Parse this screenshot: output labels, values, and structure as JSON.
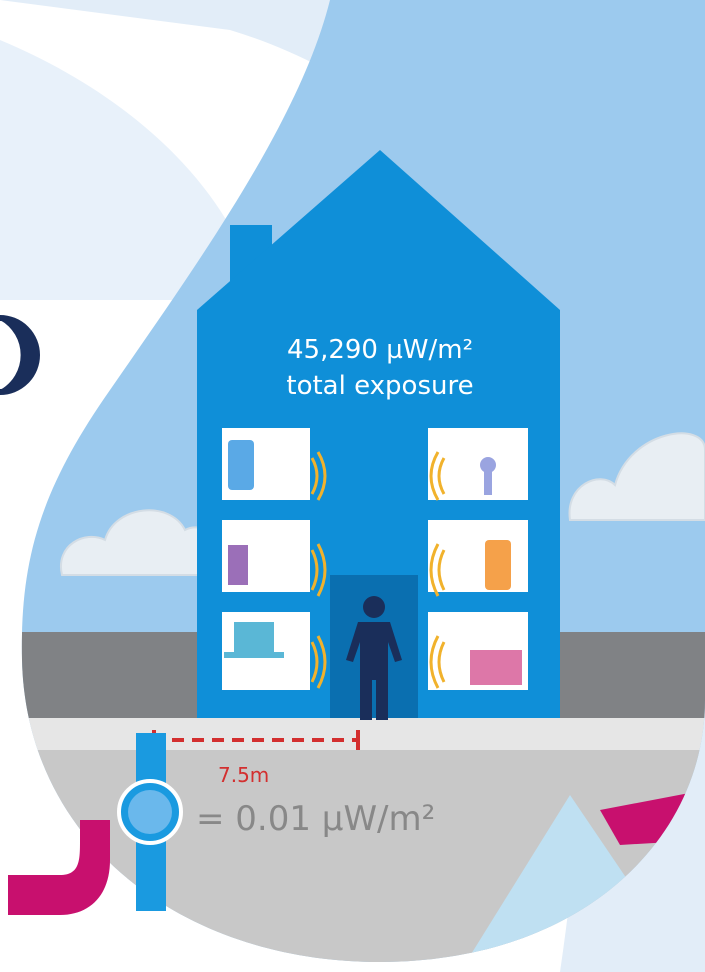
{
  "house_label": {
    "value": "45,290 µW/m²",
    "caption": "total exposure"
  },
  "distance": "7.5m",
  "meter_label": "= 0.01 µW/m²"
}
